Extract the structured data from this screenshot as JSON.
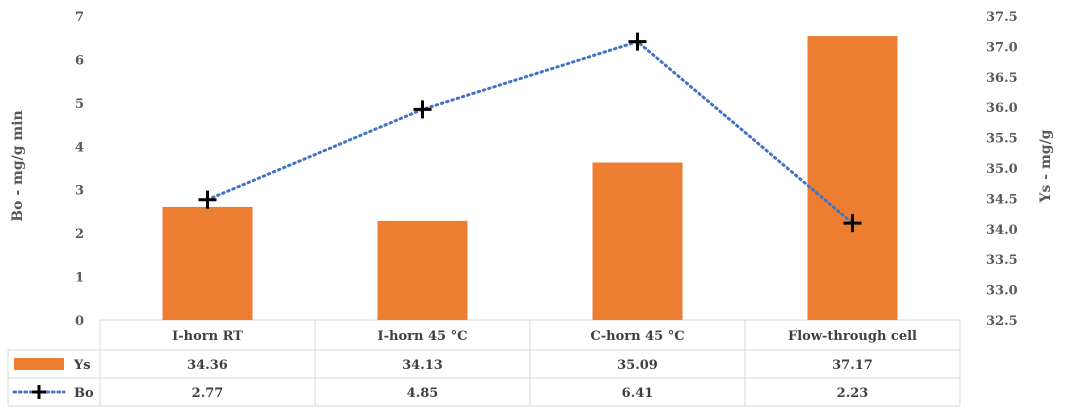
{
  "chart_data": {
    "type": "bar",
    "categories": [
      "I-horn RT",
      "I-horn 45 °C",
      "C-horn 45 °C",
      "Flow-through cell"
    ],
    "series": [
      {
        "name": "Ys",
        "type": "bar",
        "axis": "right",
        "color": "#ED7D31",
        "values": [
          34.36,
          34.13,
          35.09,
          37.17
        ]
      },
      {
        "name": "Bo",
        "type": "line",
        "axis": "left",
        "color": "#4472C4",
        "line_style": "dotted",
        "marker": "cross",
        "values": [
          2.77,
          4.85,
          6.41,
          2.23
        ]
      }
    ],
    "ylabel": "Bo - mg/g min",
    "y2label": "Ys - mg/g",
    "ylim": [
      0,
      7
    ],
    "y2lim": [
      32.5,
      37.5
    ],
    "yticks": [
      "0",
      "1",
      "2",
      "3",
      "4",
      "5",
      "6",
      "7"
    ],
    "y2ticks": [
      "32.5",
      "33.0",
      "33.5",
      "34.0",
      "34.5",
      "35.0",
      "35.5",
      "36.0",
      "36.5",
      "37.0",
      "37.5"
    ],
    "data_table": {
      "rows": [
        {
          "label": "Ys",
          "values": [
            "34.36",
            "34.13",
            "35.09",
            "37.17"
          ]
        },
        {
          "label": "Bo",
          "values": [
            "2.77",
            "4.85",
            "6.41",
            "2.23"
          ]
        }
      ]
    },
    "grid": false,
    "legend": "in data table"
  }
}
